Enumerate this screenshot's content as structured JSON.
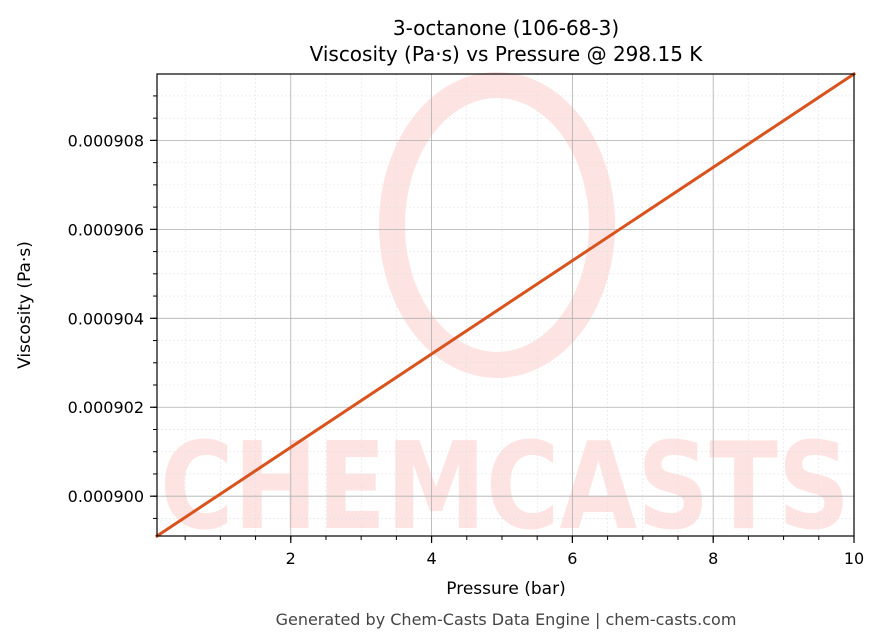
{
  "chart_data": {
    "type": "line",
    "title_line1": "3-octanone (106-68-3)",
    "title_line2": "Viscosity (Pa·s) vs Pressure @ 298.15 K",
    "xlabel": "Pressure (bar)",
    "ylabel": "Viscosity (Pa·s)",
    "xlim": [
      0.1,
      10
    ],
    "ylim": [
      0.000899105,
      0.000909493
    ],
    "x_ticks": [
      2,
      4,
      6,
      8,
      10
    ],
    "x_tick_labels": [
      "2",
      "4",
      "6",
      "8",
      "10"
    ],
    "y_ticks": [
      0.0009,
      0.000902,
      0.000904,
      0.000906,
      0.000908
    ],
    "y_tick_labels": [
      "0.000900",
      "0.000902",
      "0.000904",
      "0.000906",
      "0.000908"
    ],
    "grid": true,
    "series": [
      {
        "color": "#d9531e",
        "x": [
          0.1,
          10
        ],
        "y": [
          0.000899105,
          0.000909493
        ]
      }
    ]
  },
  "watermark": {
    "text": "CHEMCASTS",
    "color": "#fde4e2"
  },
  "footer": "Generated by Chem-Casts Data Engine | chem-casts.com"
}
